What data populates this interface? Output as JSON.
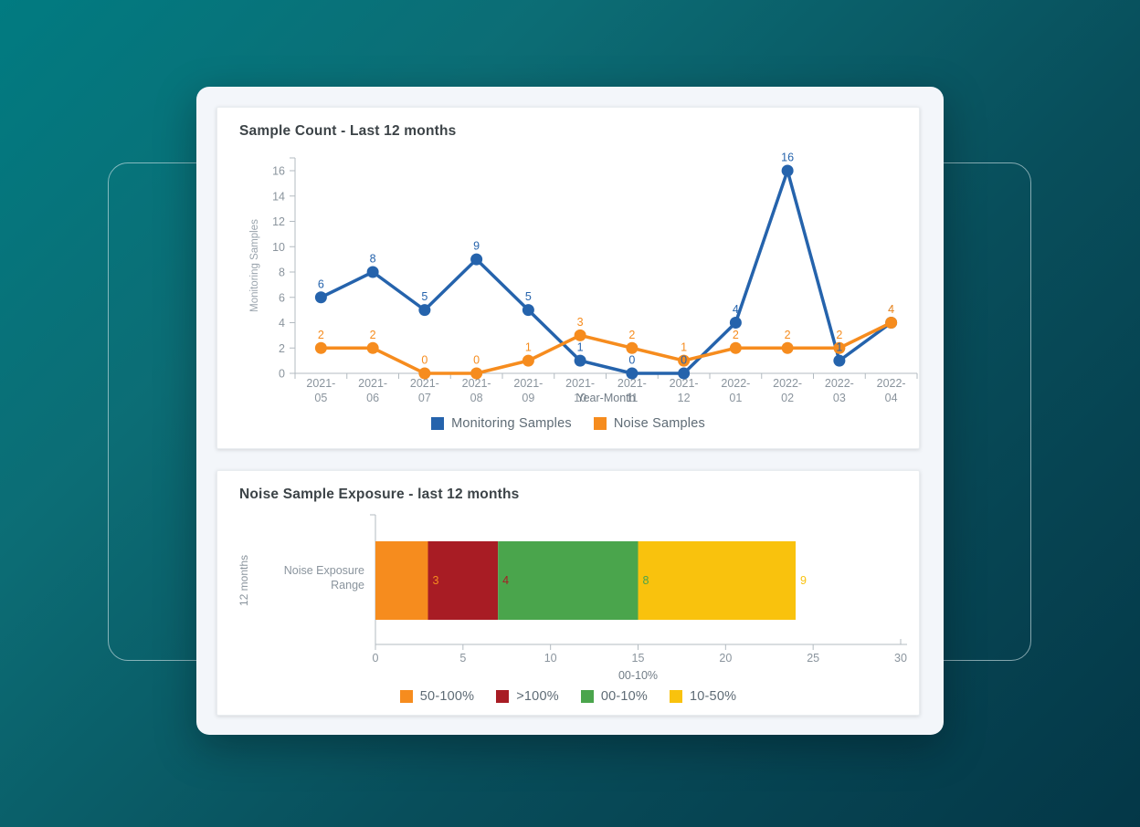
{
  "background": {
    "gradient_start": "#017b81",
    "gradient_end": "#043747"
  },
  "theme": {
    "axis_text_color": "#8a949d",
    "axis_title_color": "#727d87",
    "axis_line_color": "#b3bbc1",
    "title_color": "#3c4347",
    "legend_text_color": "#5e6b75",
    "panel_bg": "#f3f6fa",
    "card_bg": "#ffffff"
  },
  "chart_data": [
    {
      "type": "line",
      "title": "Sample Count - Last 12 months",
      "xlabel": "Year-Month",
      "ylabel": "Monitoring Samples",
      "ylim": [
        0,
        16
      ],
      "yticks": [
        0,
        2,
        4,
        6,
        8,
        10,
        12,
        14,
        16
      ],
      "grid": false,
      "legend_position": "bottom",
      "categories": [
        "2021-05",
        "2021-06",
        "2021-07",
        "2021-08",
        "2021-09",
        "2021-10",
        "2021-11",
        "2021-12",
        "2022-01",
        "2022-02",
        "2022-03",
        "2022-04"
      ],
      "series": [
        {
          "name": "Monitoring Samples",
          "color": "#2563ac",
          "values": [
            6,
            8,
            5,
            9,
            5,
            1,
            0,
            0,
            4,
            16,
            1,
            4
          ]
        },
        {
          "name": "Noise Samples",
          "color": "#f68c1e",
          "values": [
            2,
            2,
            0,
            0,
            1,
            3,
            2,
            1,
            2,
            2,
            2,
            4
          ]
        }
      ]
    },
    {
      "type": "bar",
      "orientation": "horizontal",
      "stacked": true,
      "title": "Noise Sample Exposure - last 12 months",
      "category_label_line1": "Noise Exposure",
      "category_label_line2": "Range",
      "axis_group_label": "12 months",
      "xlabel": "00-10%",
      "xlim": [
        0,
        30
      ],
      "xticks": [
        0,
        5,
        10,
        15,
        20,
        25,
        30
      ],
      "legend_position": "bottom",
      "segments": [
        {
          "name": "50-100%",
          "color": "#f68c1e",
          "value": 3
        },
        {
          "name": ">100%",
          "color": "#a81c24",
          "value": 4
        },
        {
          "name": "00-10%",
          "color": "#4aa54c",
          "value": 8
        },
        {
          "name": "10-50%",
          "color": "#f9c20d",
          "value": 9
        }
      ]
    }
  ]
}
